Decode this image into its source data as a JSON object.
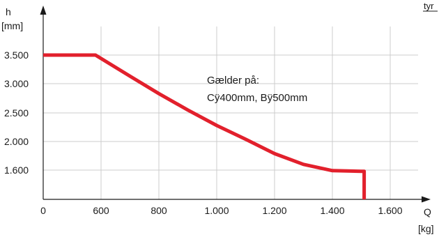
{
  "chart_data": {
    "type": "line",
    "ylabel": "h",
    "ylabel_unit": "[mm]",
    "xlabel": "Q",
    "xlabel_unit": "[kg]",
    "corner_label": "tyr",
    "annotation": {
      "line1": "Gælder på:",
      "line2": "Cÿ400mm, Bÿ500mm"
    },
    "x_ticks": [
      {
        "value": 0,
        "label": "0"
      },
      {
        "value": 600,
        "label": "600"
      },
      {
        "value": 800,
        "label": "800"
      },
      {
        "value": 1000,
        "label": "1.000"
      },
      {
        "value": 1200,
        "label": "1.200"
      },
      {
        "value": 1400,
        "label": "1.400"
      },
      {
        "value": 1600,
        "label": "1.600"
      }
    ],
    "y_ticks": [
      {
        "value": 1600,
        "label": "1.600"
      },
      {
        "value": 2000,
        "label": "2.000"
      },
      {
        "value": 2500,
        "label": "2.500"
      },
      {
        "value": 3000,
        "label": "3.000"
      },
      {
        "value": 3500,
        "label": "3.500"
      }
    ],
    "series": [
      {
        "color": "#e2202c",
        "points": [
          [
            0,
            3500
          ],
          [
            580,
            3500
          ],
          [
            600,
            3440
          ],
          [
            700,
            3130
          ],
          [
            800,
            2830
          ],
          [
            900,
            2550
          ],
          [
            1000,
            2280
          ],
          [
            1100,
            2040
          ],
          [
            1200,
            1830
          ],
          [
            1300,
            1680
          ],
          [
            1400,
            1590
          ],
          [
            1500,
            1580
          ],
          [
            1510,
            1580
          ],
          [
            1510,
            1100
          ]
        ]
      }
    ],
    "grid": true,
    "colors": {
      "axis": "#1a1a1a",
      "grid": "#cccccc",
      "series": "#e2202c"
    }
  }
}
